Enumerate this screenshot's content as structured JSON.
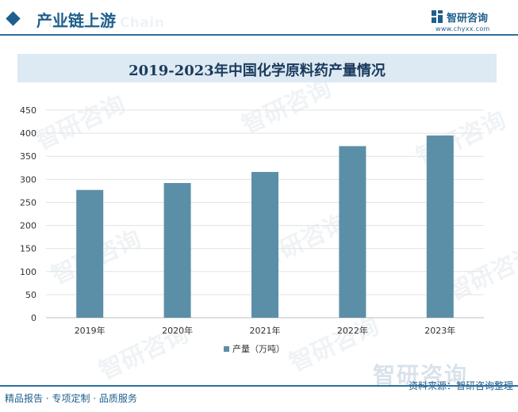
{
  "header": {
    "section_title": "产业链上游",
    "section_title_en": "Industry Chain"
  },
  "logo": {
    "name": "智研咨询",
    "url": "www.chyxx.com"
  },
  "chart_data": {
    "type": "bar",
    "title": "2019-2023年中国化学原料药产量情况",
    "categories": [
      "2019年",
      "2020年",
      "2021年",
      "2022年",
      "2023年"
    ],
    "series": [
      {
        "name": "产量（万吨）",
        "values": [
          277,
          292,
          316,
          372,
          395
        ]
      }
    ],
    "ylim": [
      0,
      450
    ],
    "yticks": [
      0,
      50,
      100,
      150,
      200,
      250,
      300,
      350,
      400,
      450
    ],
    "grid": true,
    "legend_position": "bottom",
    "bar_color": "#5b8fa8"
  },
  "watermark": {
    "text": "智研咨询"
  },
  "footer": {
    "slogan": "精品报告 · 专项定制 · 品质服务",
    "source": "资料来源：智研咨询整理",
    "brand_large": "智研咨询"
  }
}
